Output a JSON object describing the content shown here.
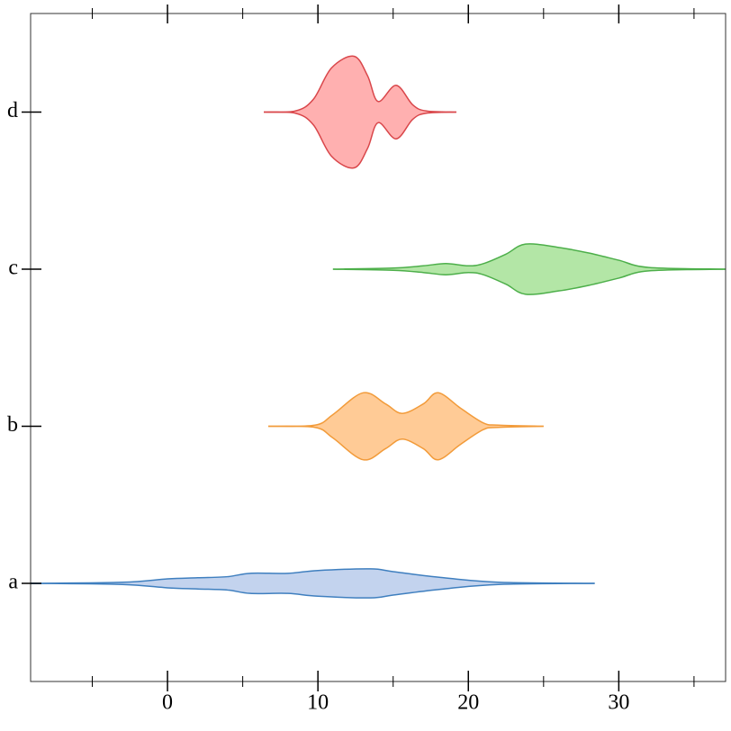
{
  "chart_data": {
    "type": "violin",
    "orientation": "horizontal",
    "categories": [
      "a",
      "b",
      "c",
      "d"
    ],
    "xlim": [
      -9.1,
      37.1
    ],
    "xticks": [
      0,
      10,
      20,
      30
    ],
    "xminorticks": [
      -5,
      5,
      15,
      25,
      35
    ],
    "series": [
      {
        "name": "a",
        "color": "#3f7fbf",
        "fill": "#c3d3ee",
        "x": [
          -9.1,
          -3,
          0,
          2,
          4,
          5.5,
          8,
          10,
          13.5,
          15,
          18,
          22,
          28.4
        ],
        "density": [
          0,
          0.02,
          0.08,
          0.1,
          0.12,
          0.18,
          0.18,
          0.23,
          0.26,
          0.21,
          0.11,
          0.02,
          0
        ]
      },
      {
        "name": "b",
        "color": "#f29b3a",
        "fill": "#ffcb96",
        "x": [
          6.7,
          9.8,
          11,
          13,
          14.5,
          15.6,
          17,
          18,
          19.5,
          21,
          22,
          25
        ],
        "density": [
          0,
          0.02,
          0.21,
          0.6,
          0.4,
          0.23,
          0.4,
          0.6,
          0.32,
          0.06,
          0.02,
          0
        ]
      },
      {
        "name": "c",
        "color": "#4daf4a",
        "fill": "#b3e6a6",
        "x": [
          11,
          15,
          17,
          18.5,
          20,
          21,
          22.5,
          23.8,
          26,
          28,
          30,
          32,
          37.1
        ],
        "density": [
          0,
          0.02,
          0.06,
          0.1,
          0.06,
          0.1,
          0.27,
          0.45,
          0.39,
          0.29,
          0.16,
          0.03,
          0
        ]
      },
      {
        "name": "d",
        "color": "#d9464a",
        "fill": "#ffb0b0",
        "x": [
          6.4,
          8.5,
          9.7,
          10.9,
          12.4,
          13.3,
          14,
          15.2,
          16.3,
          17.2,
          19.2
        ],
        "density": [
          0,
          0.02,
          0.23,
          0.79,
          1,
          0.65,
          0.19,
          0.48,
          0.13,
          0.02,
          0
        ]
      }
    ]
  }
}
